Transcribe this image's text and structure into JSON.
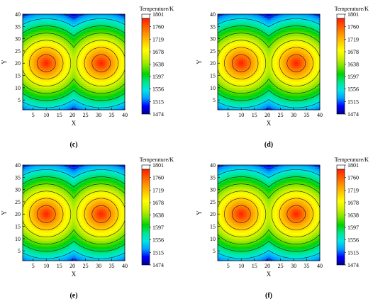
{
  "chart_data": [
    {
      "type": "heatmap",
      "panel_label": "(c)",
      "xlabel": "X",
      "ylabel": "Y",
      "xlim": [
        1,
        40
      ],
      "ylim": [
        1,
        40
      ],
      "x_ticks": [
        5,
        10,
        15,
        20,
        25,
        30,
        35,
        40
      ],
      "y_ticks": [
        5,
        10,
        15,
        20,
        25,
        30,
        35,
        40
      ],
      "colorbar_title": "Temperature/K",
      "colorbar_ticks": [
        1801,
        1760,
        1719,
        1678,
        1638,
        1597,
        1556,
        1515,
        1474
      ],
      "value_range": [
        1474,
        1801
      ],
      "hot_spots": [
        {
          "x": 10,
          "y": 20
        },
        {
          "x": 31,
          "y": 20
        }
      ],
      "contours": true
    },
    {
      "type": "heatmap",
      "panel_label": "(d)",
      "xlabel": "X",
      "ylabel": "Y",
      "xlim": [
        1,
        40
      ],
      "ylim": [
        1,
        40
      ],
      "x_ticks": [
        5,
        10,
        15,
        20,
        25,
        30,
        35,
        40
      ],
      "y_ticks": [
        5,
        10,
        15,
        20,
        25,
        30,
        35,
        40
      ],
      "colorbar_title": "Temperature/K",
      "colorbar_ticks": [
        1801,
        1760,
        1719,
        1678,
        1638,
        1597,
        1556,
        1515,
        1474
      ],
      "value_range": [
        1474,
        1801
      ],
      "hot_spots": [
        {
          "x": 10,
          "y": 20
        },
        {
          "x": 31,
          "y": 20
        }
      ],
      "contours": true
    },
    {
      "type": "heatmap",
      "panel_label": "(e)",
      "xlabel": "X",
      "ylabel": "Y",
      "xlim": [
        1,
        40
      ],
      "ylim": [
        1,
        40
      ],
      "x_ticks": [
        5,
        10,
        15,
        20,
        25,
        30,
        35,
        40
      ],
      "y_ticks": [
        5,
        10,
        15,
        20,
        25,
        30,
        35,
        40
      ],
      "colorbar_title": "Temperature/K",
      "colorbar_ticks": [
        1801,
        1760,
        1719,
        1678,
        1638,
        1597,
        1556,
        1515,
        1474
      ],
      "value_range": [
        1474,
        1801
      ],
      "hot_spots": [
        {
          "x": 10,
          "y": 20
        },
        {
          "x": 31,
          "y": 20
        }
      ],
      "contours": true
    },
    {
      "type": "heatmap",
      "panel_label": "(f)",
      "xlabel": "X",
      "ylabel": "Y",
      "xlim": [
        1,
        40
      ],
      "ylim": [
        1,
        40
      ],
      "x_ticks": [
        5,
        10,
        15,
        20,
        25,
        30,
        35,
        40
      ],
      "y_ticks": [
        5,
        10,
        15,
        20,
        25,
        30,
        35,
        40
      ],
      "colorbar_title": "Temperature/K",
      "colorbar_ticks": [
        1801,
        1760,
        1719,
        1678,
        1638,
        1597,
        1556,
        1515,
        1474
      ],
      "value_range": [
        1474,
        1801
      ],
      "hot_spots": [
        {
          "x": 10,
          "y": 20
        },
        {
          "x": 31,
          "y": 20
        }
      ],
      "contours": true
    }
  ],
  "colormap": [
    "#00008b",
    "#0000ff",
    "#00a0ff",
    "#00e6e6",
    "#00e68c",
    "#00d200",
    "#78e600",
    "#d2f000",
    "#ffff00",
    "#ffcc00",
    "#ff9600",
    "#ff5a00",
    "#ff1e00"
  ]
}
